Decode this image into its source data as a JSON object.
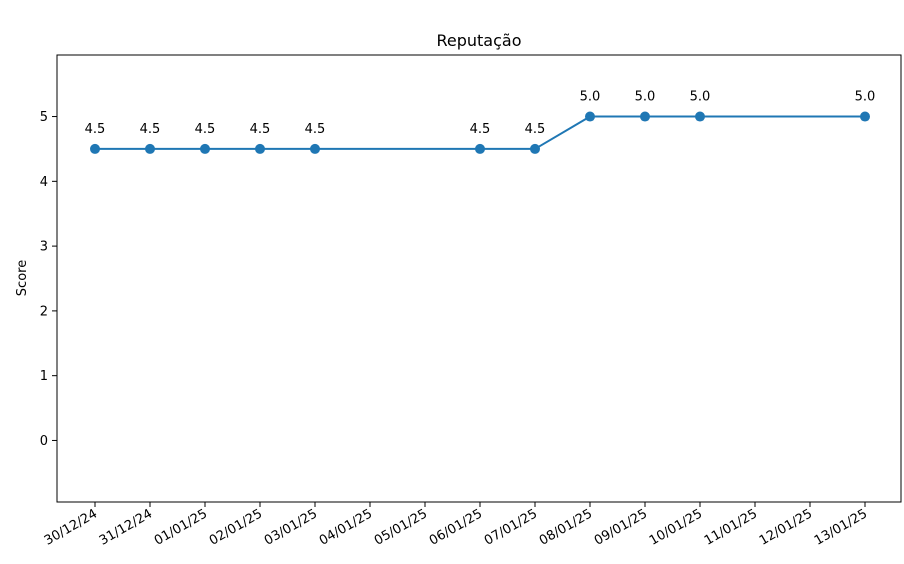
{
  "chart_data": {
    "type": "line",
    "title": "Reputação",
    "xlabel": "",
    "ylabel": "Score",
    "ylim": [
      -0.95,
      5.95
    ],
    "yticks": [
      0,
      1,
      2,
      3,
      4,
      5
    ],
    "x_ticks": [
      "30/12/24",
      "31/12/24",
      "01/01/25",
      "02/01/25",
      "03/01/25",
      "04/01/25",
      "05/01/25",
      "06/01/25",
      "07/01/25",
      "08/01/25",
      "09/01/25",
      "10/01/25",
      "11/01/25",
      "12/01/25",
      "13/01/25"
    ],
    "grid": false,
    "legend": "none",
    "series": [
      {
        "color": "#1f77b4",
        "points": [
          {
            "x": "30/12/24",
            "y": 4.5,
            "label": "4.5"
          },
          {
            "x": "31/12/24",
            "y": 4.5,
            "label": "4.5"
          },
          {
            "x": "01/01/25",
            "y": 4.5,
            "label": "4.5"
          },
          {
            "x": "02/01/25",
            "y": 4.5,
            "label": "4.5"
          },
          {
            "x": "03/01/25",
            "y": 4.5,
            "label": "4.5"
          },
          {
            "x": "06/01/25",
            "y": 4.5,
            "label": "4.5"
          },
          {
            "x": "07/01/25",
            "y": 4.5,
            "label": "4.5"
          },
          {
            "x": "08/01/25",
            "y": 5.0,
            "label": "5.0"
          },
          {
            "x": "09/01/25",
            "y": 5.0,
            "label": "5.0"
          },
          {
            "x": "10/01/25",
            "y": 5.0,
            "label": "5.0"
          },
          {
            "x": "13/01/25",
            "y": 5.0,
            "label": "5.0"
          }
        ]
      }
    ]
  }
}
